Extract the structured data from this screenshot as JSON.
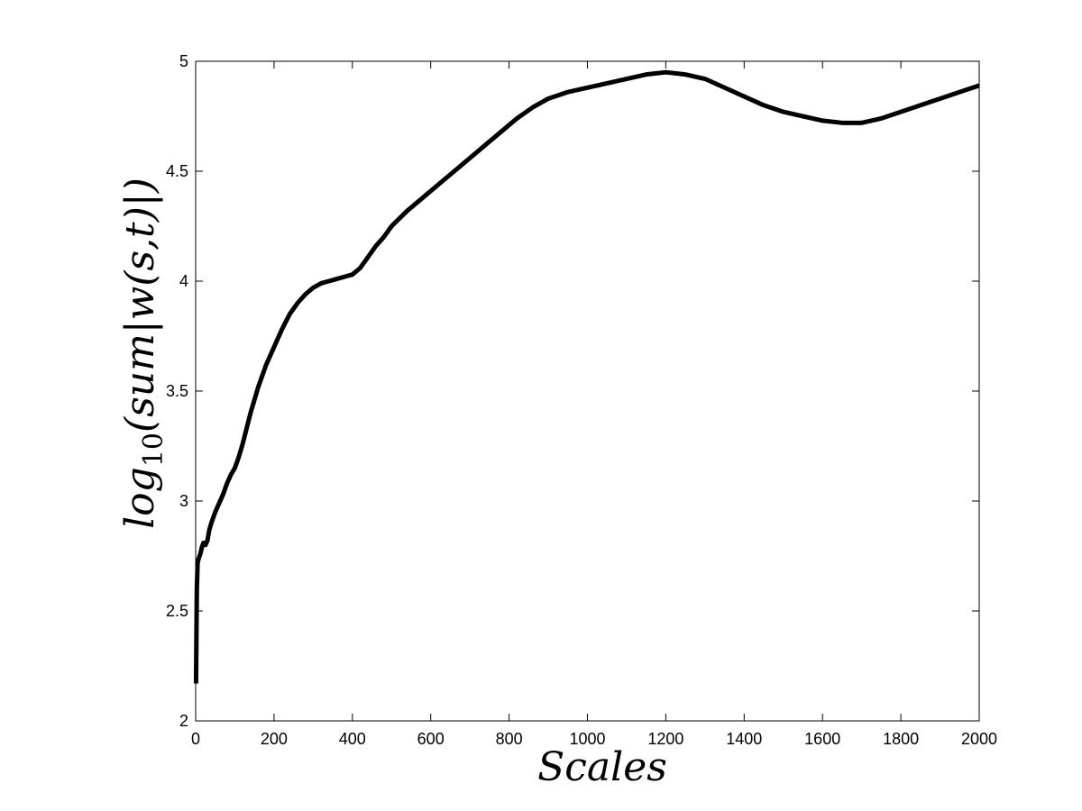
{
  "chart_data": {
    "type": "line",
    "title": "",
    "xlabel": "Scales",
    "ylabel": "log10(sum|w(s,t)|)",
    "ylabel_parts": {
      "pre": "log",
      "sub": "10",
      "post": "(sum|w(s,t)|)"
    },
    "xlim": [
      0,
      2000
    ],
    "ylim": [
      2,
      5
    ],
    "xticks": [
      0,
      200,
      400,
      600,
      800,
      1000,
      1200,
      1400,
      1600,
      1800,
      2000
    ],
    "yticks": [
      2,
      2.5,
      3,
      3.5,
      4,
      4.5,
      5
    ],
    "grid": false,
    "colors": {
      "line": "#000000",
      "axes": "#000000",
      "background": "#ffffff"
    },
    "series": [
      {
        "x": [
          1,
          2,
          3,
          5,
          8,
          12,
          16,
          20,
          25,
          30,
          35,
          40,
          50,
          60,
          70,
          80,
          90,
          100,
          110,
          120,
          130,
          140,
          150,
          160,
          180,
          200,
          220,
          240,
          260,
          280,
          300,
          320,
          340,
          360,
          380,
          400,
          420,
          440,
          460,
          480,
          500,
          540,
          580,
          620,
          660,
          700,
          740,
          780,
          820,
          860,
          900,
          950,
          1000,
          1050,
          1100,
          1150,
          1200,
          1250,
          1300,
          1350,
          1400,
          1450,
          1500,
          1550,
          1600,
          1650,
          1700,
          1750,
          1800,
          1850,
          1900,
          1950,
          2000
        ],
        "y": [
          2.17,
          2.4,
          2.6,
          2.72,
          2.74,
          2.76,
          2.79,
          2.81,
          2.8,
          2.82,
          2.87,
          2.9,
          2.95,
          2.99,
          3.03,
          3.08,
          3.12,
          3.15,
          3.2,
          3.26,
          3.33,
          3.4,
          3.46,
          3.52,
          3.62,
          3.7,
          3.78,
          3.85,
          3.9,
          3.94,
          3.97,
          3.99,
          4.0,
          4.01,
          4.02,
          4.03,
          4.06,
          4.11,
          4.16,
          4.2,
          4.25,
          4.32,
          4.38,
          4.44,
          4.5,
          4.56,
          4.62,
          4.68,
          4.74,
          4.79,
          4.83,
          4.86,
          4.88,
          4.9,
          4.92,
          4.94,
          4.95,
          4.94,
          4.92,
          4.88,
          4.84,
          4.8,
          4.77,
          4.75,
          4.73,
          4.72,
          4.72,
          4.74,
          4.77,
          4.8,
          4.83,
          4.86,
          4.89
        ]
      }
    ]
  }
}
